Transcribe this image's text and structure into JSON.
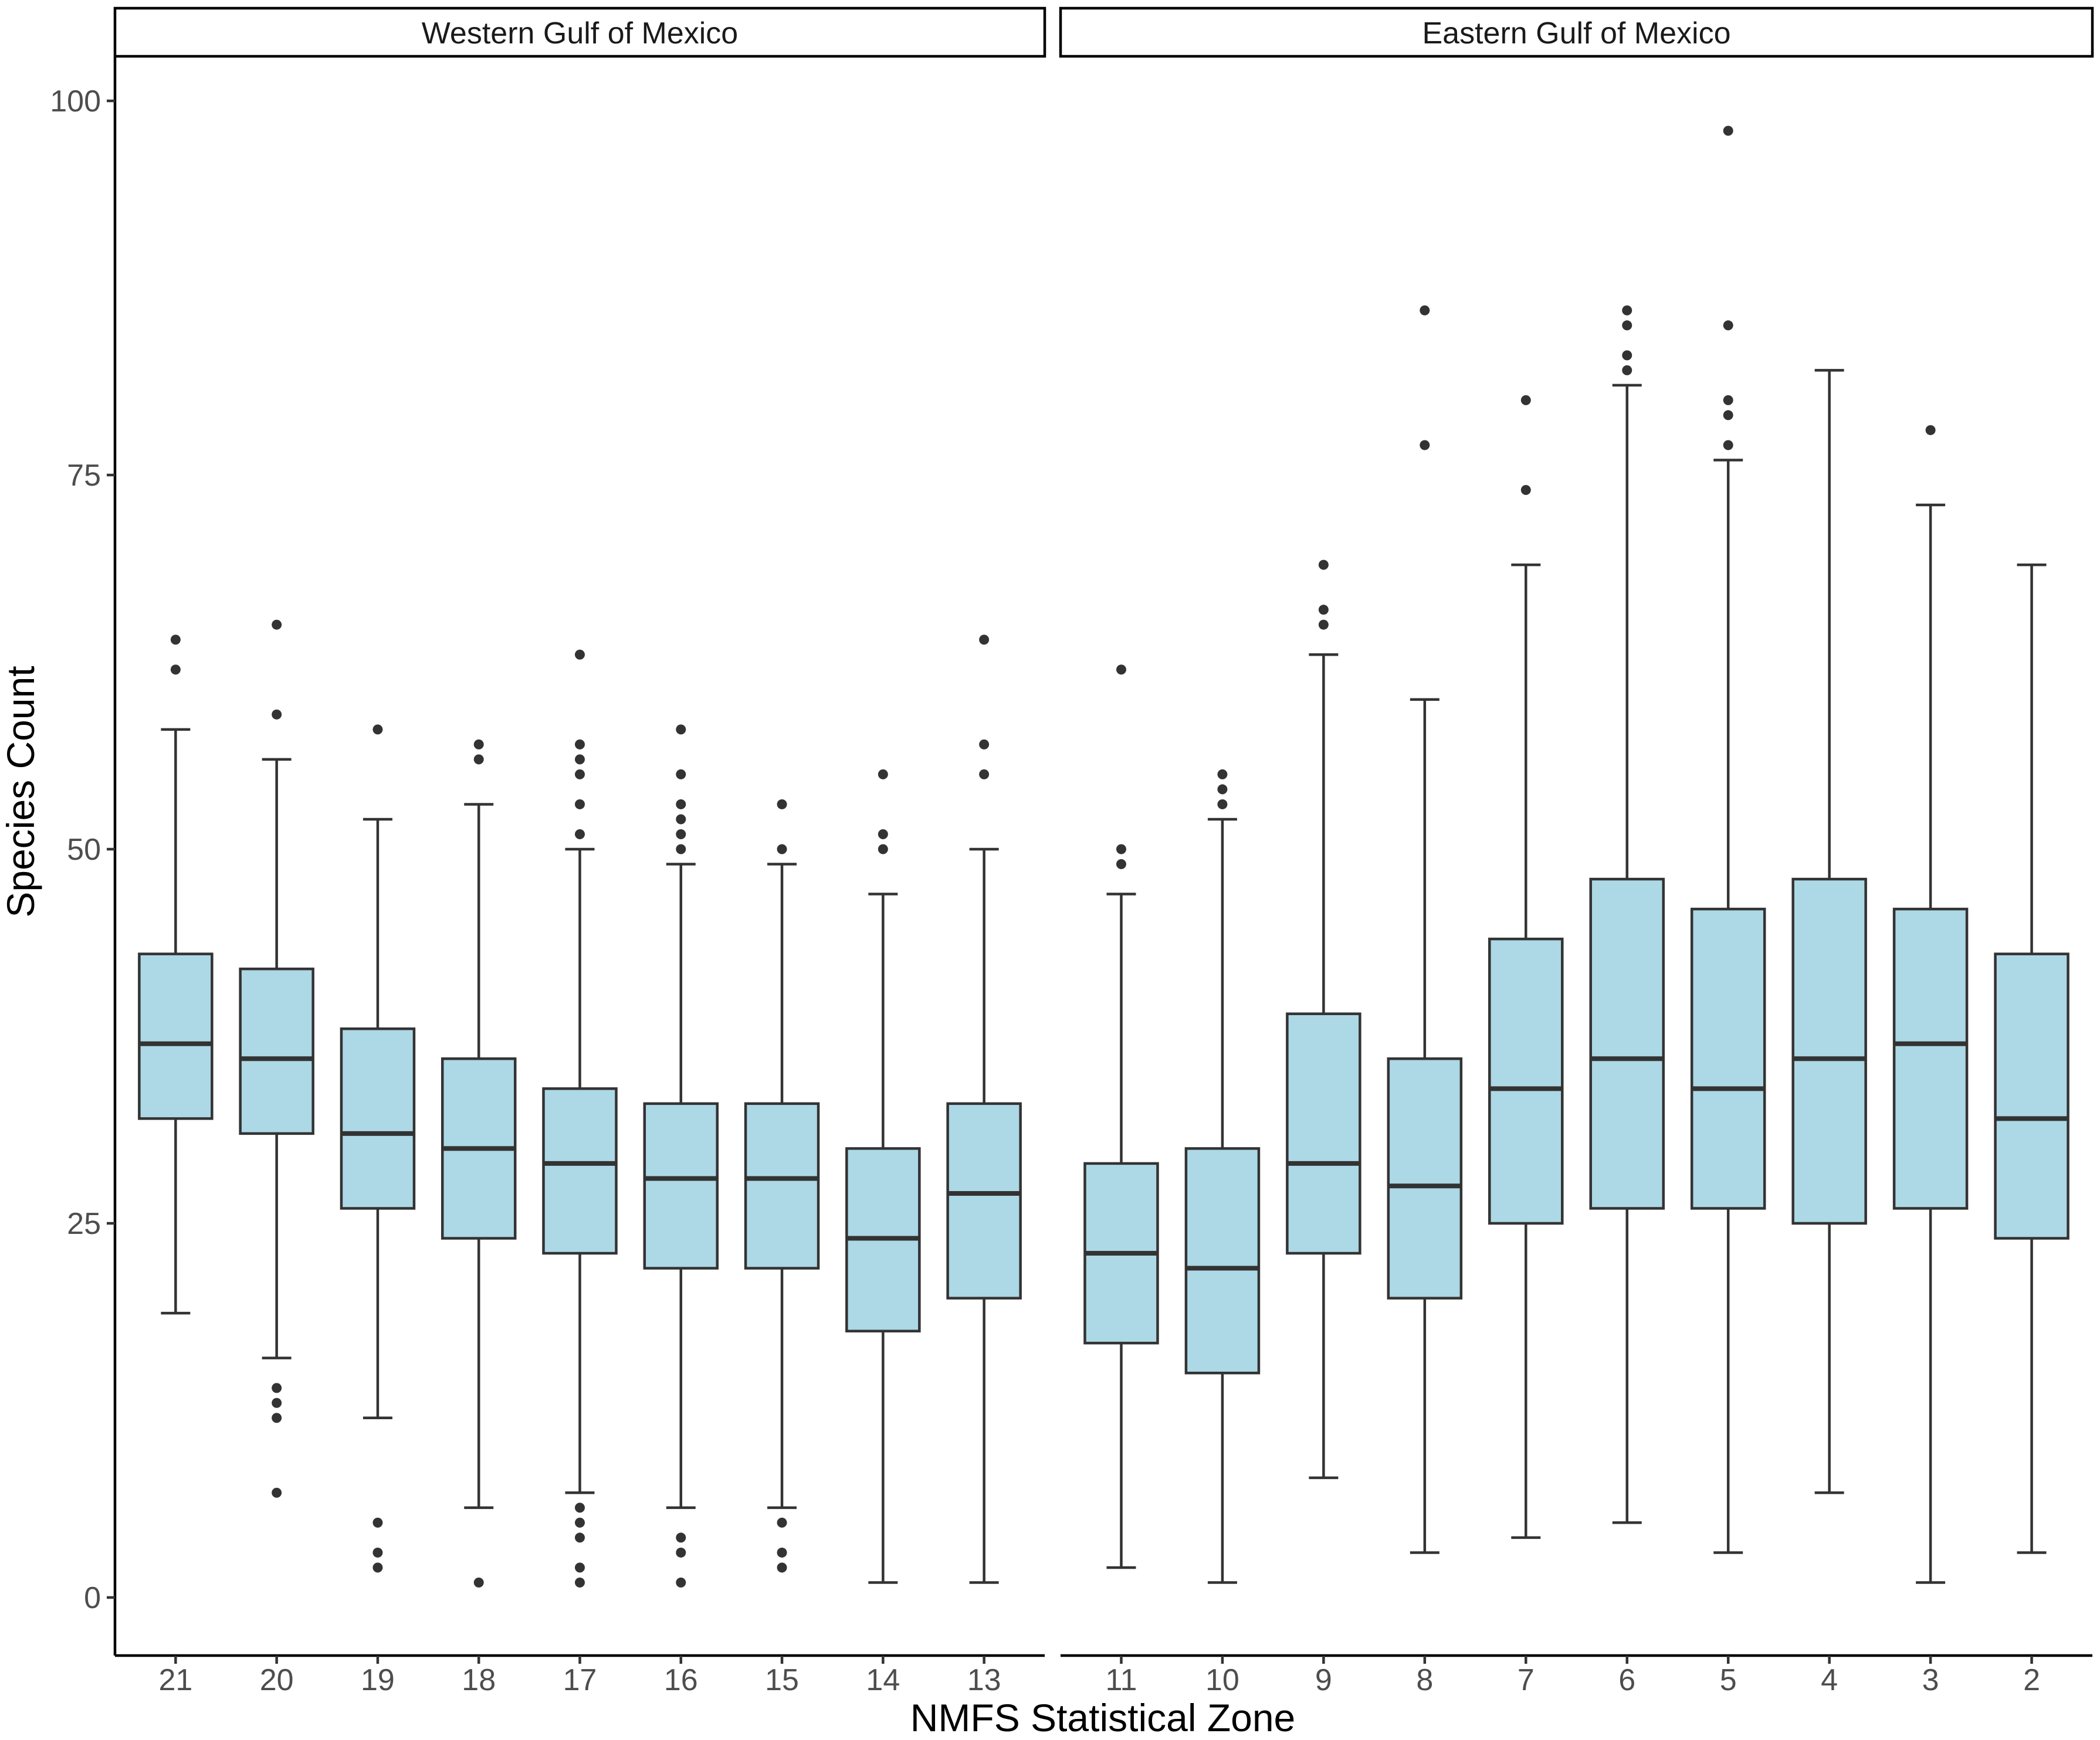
{
  "chart_data": {
    "type": "boxplot",
    "xlabel": "NMFS Statistical Zone",
    "ylabel": "Species Count",
    "ylim": [
      -4,
      101
    ],
    "yticks": [
      0,
      25,
      50,
      75,
      100
    ],
    "fill_color": "#add8e6",
    "line_color": "#333333",
    "panels": [
      {
        "name": "Western Gulf of Mexico",
        "categories": [
          "21",
          "20",
          "19",
          "18",
          "17",
          "16",
          "15",
          "14",
          "13"
        ],
        "boxes": [
          {
            "zone": "21",
            "min": 19,
            "q1": 32,
            "median": 37,
            "q3": 43,
            "max": 58,
            "outliers": [
              62,
              64
            ]
          },
          {
            "zone": "20",
            "min": 16,
            "q1": 31,
            "median": 36,
            "q3": 42,
            "max": 56,
            "outliers": [
              7,
              12,
              13,
              14,
              59,
              65
            ]
          },
          {
            "zone": "19",
            "min": 12,
            "q1": 26,
            "median": 31,
            "q3": 38,
            "max": 52,
            "outliers": [
              2,
              3,
              5,
              58
            ]
          },
          {
            "zone": "18",
            "min": 6,
            "q1": 24,
            "median": 30,
            "q3": 36,
            "max": 53,
            "outliers": [
              1,
              56,
              57
            ]
          },
          {
            "zone": "17",
            "min": 7,
            "q1": 23,
            "median": 29,
            "q3": 34,
            "max": 50,
            "outliers": [
              1,
              2,
              4,
              5,
              6,
              51,
              53,
              55,
              56,
              57,
              63
            ]
          },
          {
            "zone": "16",
            "min": 6,
            "q1": 22,
            "median": 28,
            "q3": 33,
            "max": 49,
            "outliers": [
              1,
              3,
              4,
              50,
              51,
              52,
              53,
              55,
              58
            ]
          },
          {
            "zone": "15",
            "min": 6,
            "q1": 22,
            "median": 28,
            "q3": 33,
            "max": 49,
            "outliers": [
              2,
              3,
              5,
              50,
              53
            ]
          },
          {
            "zone": "14",
            "min": 1,
            "q1": 17.8,
            "median": 24,
            "q3": 30,
            "max": 47,
            "outliers": [
              50,
              51,
              55
            ]
          },
          {
            "zone": "13",
            "min": 1,
            "q1": 20,
            "median": 27,
            "q3": 33,
            "max": 50,
            "outliers": [
              55,
              57,
              64
            ]
          }
        ]
      },
      {
        "name": "Eastern Gulf of Mexico",
        "categories": [
          "11",
          "10",
          "9",
          "8",
          "7",
          "6",
          "5",
          "4",
          "3",
          "2"
        ],
        "boxes": [
          {
            "zone": "11",
            "min": 2,
            "q1": 17,
            "median": 23,
            "q3": 29,
            "max": 47,
            "outliers": [
              49,
              50,
              62
            ]
          },
          {
            "zone": "10",
            "min": 1,
            "q1": 15,
            "median": 22,
            "q3": 30,
            "max": 52,
            "outliers": [
              53,
              54,
              55
            ]
          },
          {
            "zone": "9",
            "min": 8,
            "q1": 23,
            "median": 29,
            "q3": 39,
            "max": 63,
            "outliers": [
              65,
              66,
              69
            ]
          },
          {
            "zone": "8",
            "min": 3,
            "q1": 20,
            "median": 27.5,
            "q3": 36,
            "max": 60,
            "outliers": [
              77,
              86
            ]
          },
          {
            "zone": "7",
            "min": 4,
            "q1": 25,
            "median": 34,
            "q3": 44,
            "max": 69,
            "outliers": [
              74,
              80
            ]
          },
          {
            "zone": "6",
            "min": 5,
            "q1": 26,
            "median": 36,
            "q3": 48,
            "max": 81,
            "outliers": [
              82,
              83,
              85,
              86
            ]
          },
          {
            "zone": "5",
            "min": 3,
            "q1": 26,
            "median": 34,
            "q3": 46,
            "max": 76,
            "outliers": [
              77,
              79,
              80,
              85,
              98
            ]
          },
          {
            "zone": "4",
            "min": 7,
            "q1": 25,
            "median": 36,
            "q3": 48,
            "max": 82,
            "outliers": []
          },
          {
            "zone": "3",
            "min": 1,
            "q1": 26,
            "median": 37,
            "q3": 46,
            "max": 73,
            "outliers": [
              78
            ]
          },
          {
            "zone": "2",
            "min": 3,
            "q1": 24,
            "median": 32,
            "q3": 43,
            "max": 69,
            "outliers": []
          }
        ]
      }
    ]
  }
}
